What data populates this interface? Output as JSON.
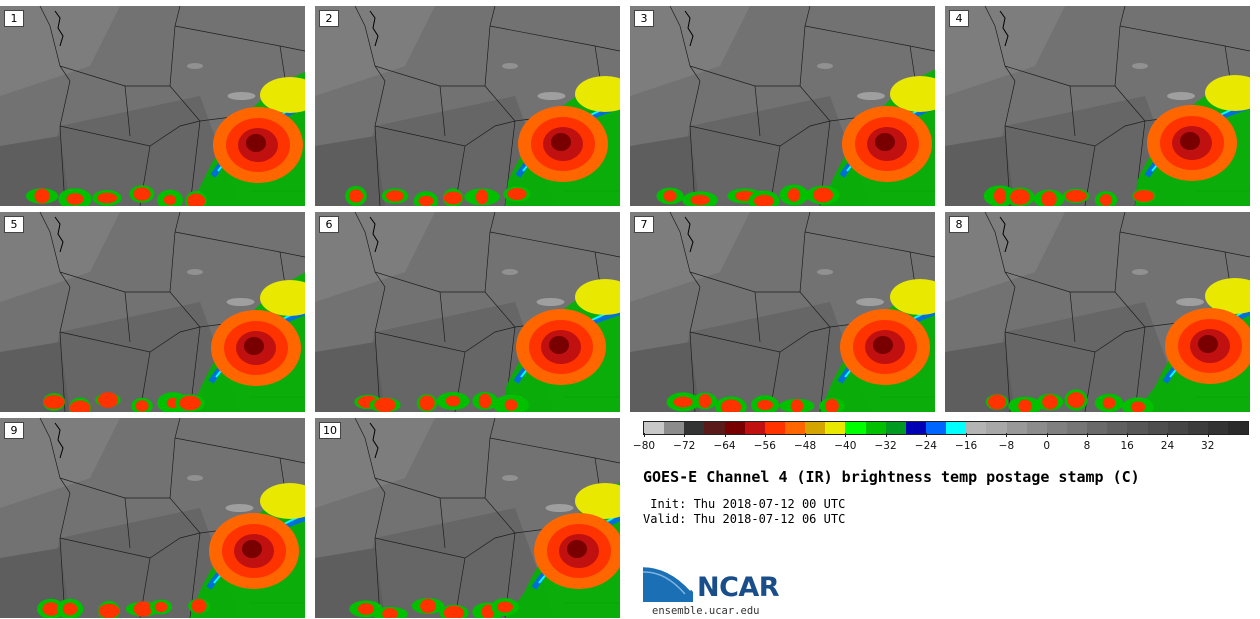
{
  "panels": [
    {
      "label": "1"
    },
    {
      "label": "2"
    },
    {
      "label": "3"
    },
    {
      "label": "4"
    },
    {
      "label": "5"
    },
    {
      "label": "6"
    },
    {
      "label": "7"
    },
    {
      "label": "8"
    },
    {
      "label": "9"
    },
    {
      "label": "10"
    }
  ],
  "colorbar": {
    "colors": [
      "#c8c8c8",
      "#8c8c8c",
      "#333333",
      "#5a1a1a",
      "#780000",
      "#c01010",
      "#ff3300",
      "#ff6600",
      "#d4a500",
      "#e8e800",
      "#00ff00",
      "#00c000",
      "#009a20",
      "#0000b4",
      "#0064ff",
      "#00ffff",
      "#b4b4b4",
      "#a8a8a8",
      "#999999",
      "#8c8c8c",
      "#808080",
      "#767676",
      "#6a6a6a",
      "#606060",
      "#575757",
      "#4e4e4e",
      "#454545",
      "#3c3c3c",
      "#333333",
      "#2a2a2a"
    ],
    "ticks": [
      "−80",
      "−72",
      "−64",
      "−56",
      "−48",
      "−40",
      "−32",
      "−24",
      "−16",
      "−8",
      "0",
      "8",
      "16",
      "24",
      "32"
    ]
  },
  "title": "GOES-E Channel 4 (IR) brightness temp postage stamp (C)",
  "init": " Init: Thu 2018-07-12 00 UTC",
  "valid": "Valid: Thu 2018-07-12 06 UTC",
  "logo": {
    "text": "NCAR",
    "brand_color": "#1a4e8a",
    "url": "ensemble.ucar.edu"
  }
}
